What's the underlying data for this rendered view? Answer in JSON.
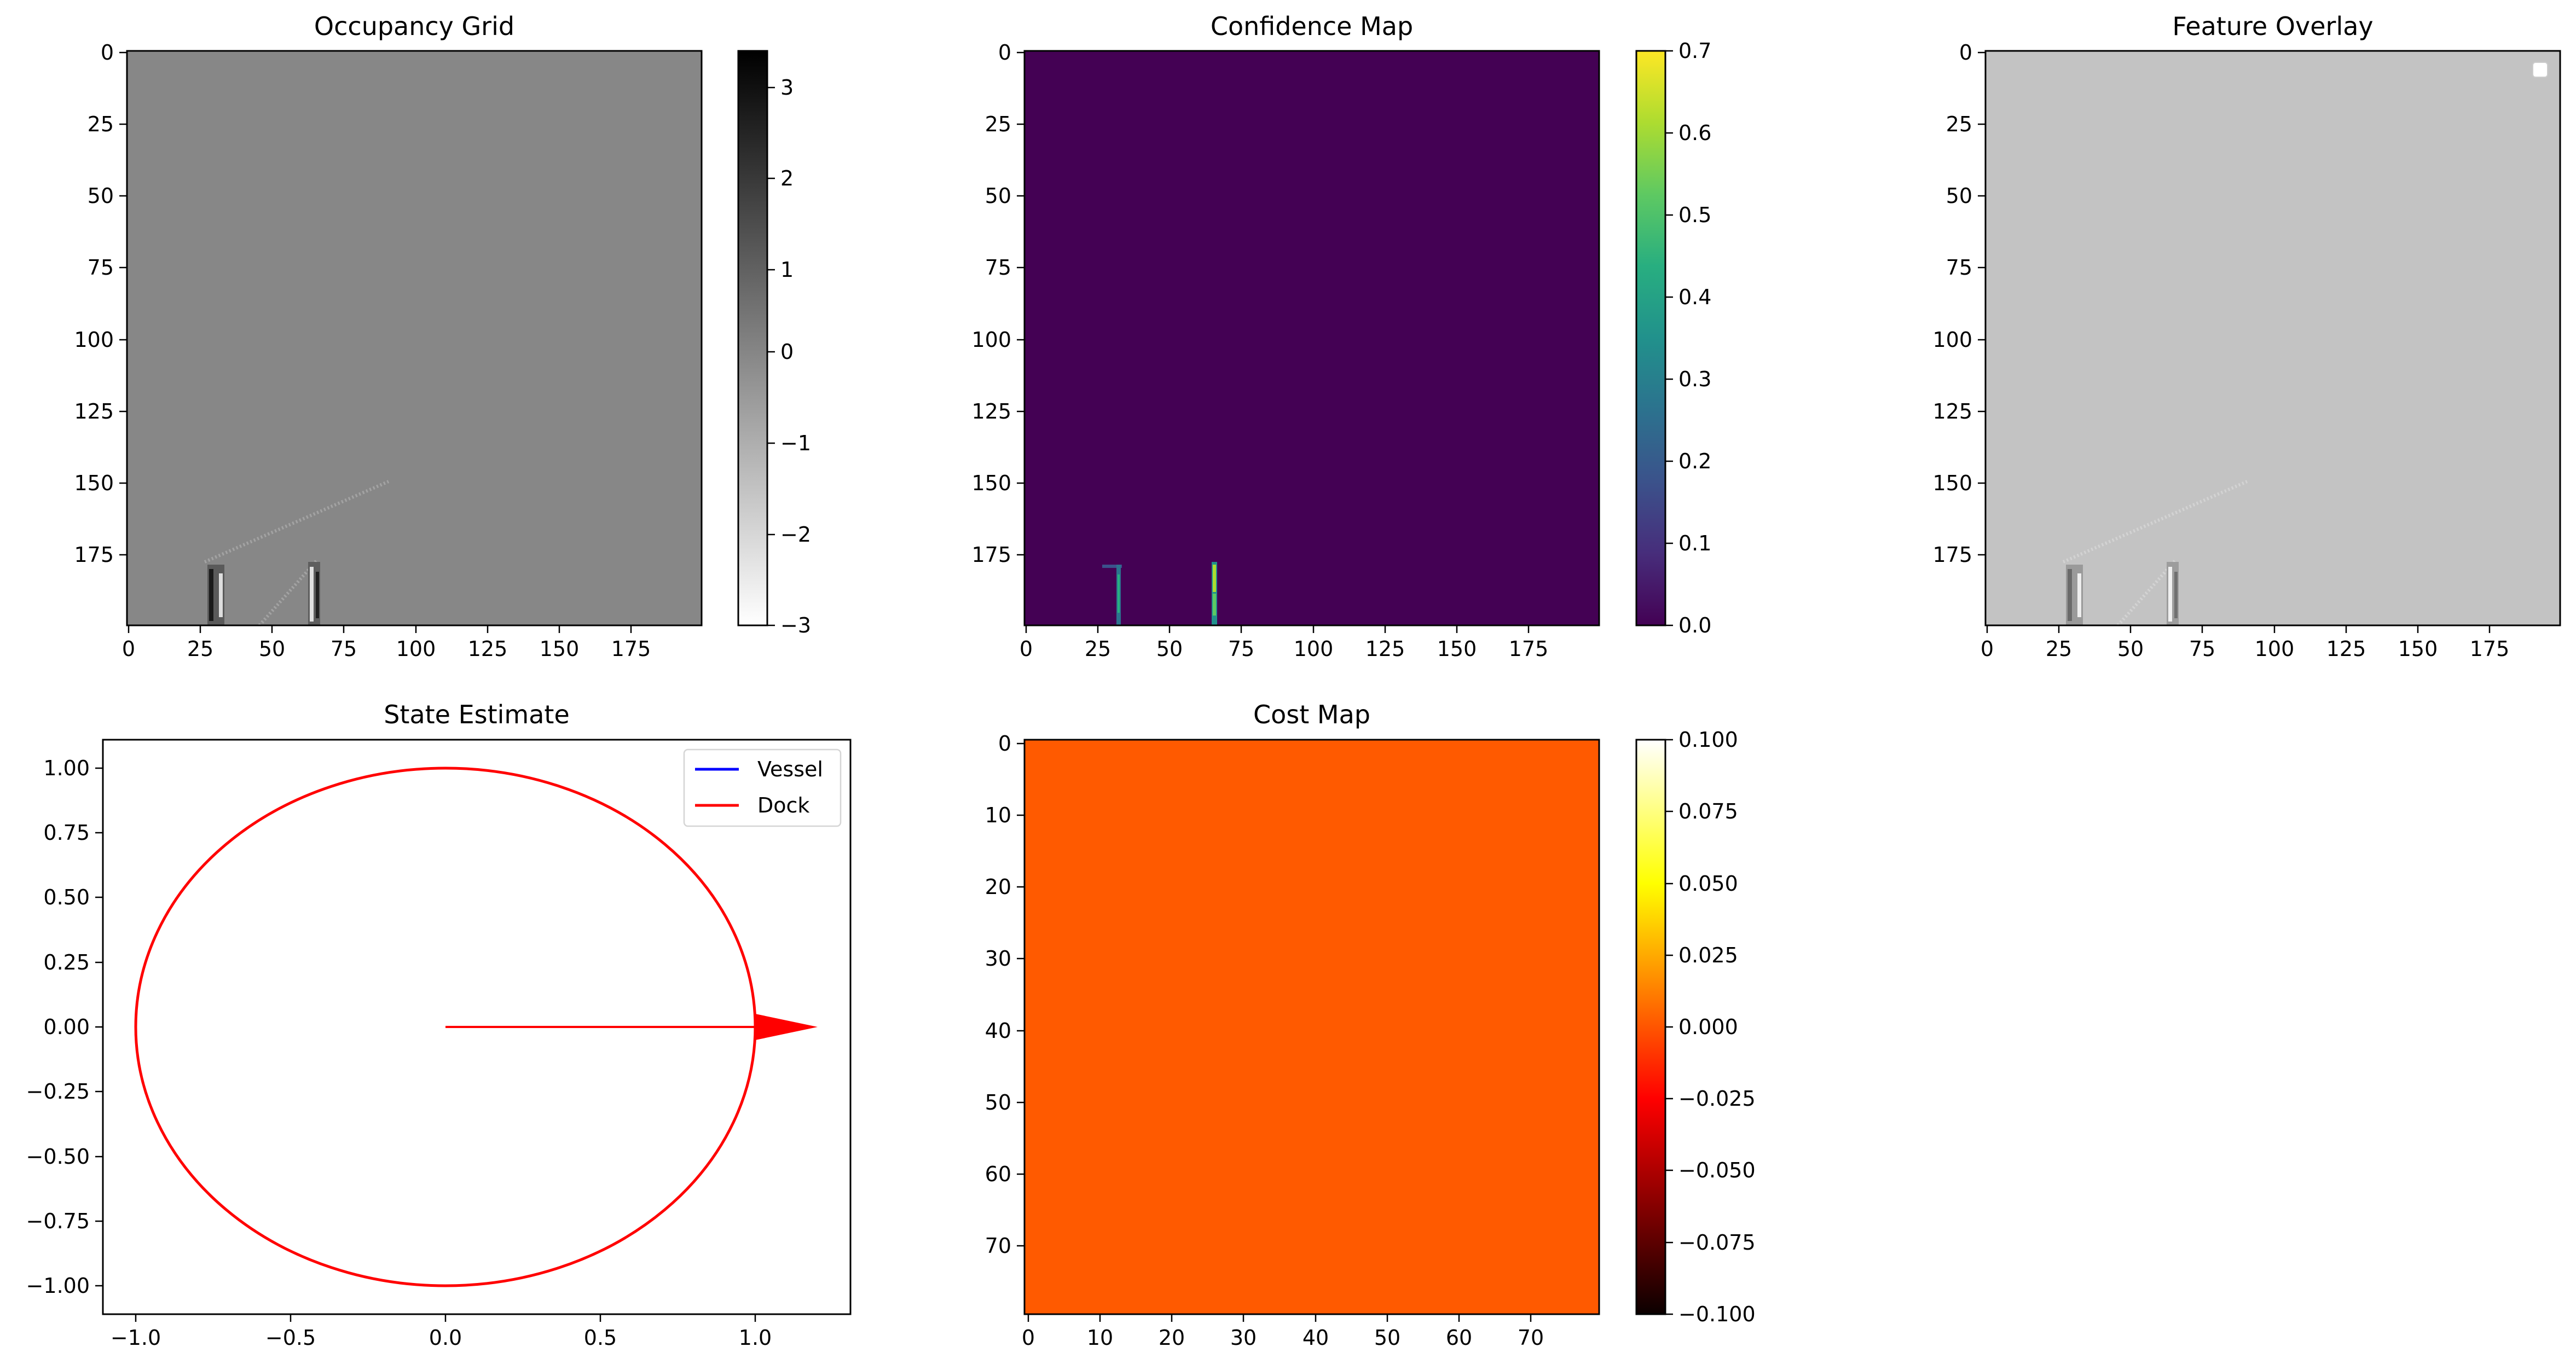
{
  "figure": {
    "panels": [
      {
        "id": "occupancy",
        "title": "Occupancy Grid",
        "x_ticks": [
          "0",
          "25",
          "50",
          "75",
          "100",
          "125",
          "150",
          "175"
        ],
        "y_ticks": [
          "0",
          "25",
          "50",
          "75",
          "100",
          "125",
          "150",
          "175"
        ],
        "colorbar": {
          "colormap": "gray_r",
          "ticks": [
            "3",
            "2",
            "1",
            "0",
            "−1",
            "−2",
            "−3"
          ]
        }
      },
      {
        "id": "confidence",
        "title": "Confidence Map",
        "x_ticks": [
          "0",
          "25",
          "50",
          "75",
          "100",
          "125",
          "150",
          "175"
        ],
        "y_ticks": [
          "0",
          "25",
          "50",
          "75",
          "100",
          "125",
          "150",
          "175"
        ],
        "colorbar": {
          "colormap": "viridis",
          "ticks": [
            "0.7",
            "0.6",
            "0.5",
            "0.4",
            "0.3",
            "0.2",
            "0.1",
            "0.0"
          ]
        }
      },
      {
        "id": "overlay",
        "title": "Feature Overlay",
        "x_ticks": [
          "0",
          "25",
          "50",
          "75",
          "100",
          "125",
          "150",
          "175"
        ],
        "y_ticks": [
          "0",
          "25",
          "50",
          "75",
          "100",
          "125",
          "150",
          "175"
        ]
      },
      {
        "id": "state",
        "title": "State Estimate",
        "x_ticks": [
          "−1.0",
          "−0.5",
          "0.0",
          "0.5",
          "1.0"
        ],
        "y_ticks": [
          "1.00",
          "0.75",
          "0.50",
          "0.25",
          "0.00",
          "−0.25",
          "−0.50",
          "−0.75",
          "−1.00"
        ],
        "legend": [
          "Vessel",
          "Dock"
        ]
      },
      {
        "id": "cost",
        "title": "Cost Map",
        "x_ticks": [
          "0",
          "10",
          "20",
          "30",
          "40",
          "50",
          "60",
          "70"
        ],
        "y_ticks": [
          "0",
          "10",
          "20",
          "30",
          "40",
          "50",
          "60",
          "70"
        ],
        "colorbar": {
          "colormap": "hot",
          "ticks": [
            "0.100",
            "0.075",
            "0.050",
            "0.025",
            "0.000",
            "−0.025",
            "−0.050",
            "−0.075",
            "−0.100"
          ]
        }
      }
    ]
  },
  "chart_data": [
    {
      "type": "heatmap",
      "title": "Occupancy Grid",
      "grid_size": [
        200,
        200
      ],
      "x_range": [
        0,
        199
      ],
      "y_range": [
        199,
        0
      ],
      "colormap": "gray_r",
      "clim": [
        -3,
        3.3
      ],
      "background_value": 0,
      "features": [
        {
          "kind": "diagonal-line",
          "from": [
            27,
            178
          ],
          "to": [
            91,
            150
          ]
        },
        {
          "kind": "diagonal-line",
          "from": [
            46,
            199
          ],
          "to": [
            66,
            177
          ]
        },
        {
          "kind": "noisy-column",
          "x": [
            28,
            34
          ],
          "y": [
            179,
            199
          ]
        },
        {
          "kind": "noisy-column",
          "x": [
            63,
            67
          ],
          "y": [
            178,
            199
          ]
        }
      ],
      "grid": false
    },
    {
      "type": "heatmap",
      "title": "Confidence Map",
      "grid_size": [
        200,
        200
      ],
      "x_range": [
        0,
        199
      ],
      "y_range": [
        199,
        0
      ],
      "colormap": "viridis",
      "clim": [
        0.0,
        0.7
      ],
      "background_value": 0.0,
      "features": [
        {
          "kind": "column",
          "x": [
            27,
            34
          ],
          "y": [
            179,
            199
          ],
          "max_value": 0.35
        },
        {
          "kind": "column",
          "x": [
            63,
            67
          ],
          "y": [
            178,
            199
          ],
          "max_value": 0.7
        }
      ],
      "grid": false
    },
    {
      "type": "heatmap",
      "title": "Feature Overlay",
      "grid_size": [
        200,
        200
      ],
      "x_range": [
        0,
        199
      ],
      "y_range": [
        199,
        0
      ],
      "colormap": "gray_r",
      "background_value": 0,
      "features": [
        {
          "kind": "diagonal-line",
          "from": [
            27,
            178
          ],
          "to": [
            91,
            150
          ]
        },
        {
          "kind": "diagonal-line",
          "from": [
            46,
            199
          ],
          "to": [
            66,
            177
          ]
        },
        {
          "kind": "noisy-column",
          "x": [
            28,
            34
          ],
          "y": [
            179,
            199
          ]
        },
        {
          "kind": "noisy-column",
          "x": [
            63,
            67
          ],
          "y": [
            178,
            199
          ]
        }
      ],
      "legend_placement": "top-right",
      "grid": false
    },
    {
      "type": "line",
      "title": "State Estimate",
      "xlim": [
        -1.1,
        1.3
      ],
      "ylim": [
        -1.1,
        1.1
      ],
      "series": [
        {
          "name": "Vessel",
          "color": "#0000ff",
          "points": []
        },
        {
          "name": "Dock",
          "color": "#ff0000",
          "shape": "circle",
          "center": [
            0,
            0
          ],
          "radius": 1.0
        }
      ],
      "arrow": {
        "color": "#ff0000",
        "from": [
          0.0,
          0.0
        ],
        "to": [
          1.2,
          0.0
        ],
        "head_start_x": 1.0,
        "head_half_width": 0.05
      },
      "legend_placement": "top-right",
      "grid": false
    },
    {
      "type": "heatmap",
      "title": "Cost Map",
      "grid_size": [
        80,
        80
      ],
      "x_range": [
        0,
        79
      ],
      "y_range": [
        79,
        0
      ],
      "colormap": "hot",
      "clim": [
        -0.1,
        0.1
      ],
      "uniform_value": 0.0,
      "uniform_color": "#ff5a00",
      "grid": false
    }
  ]
}
